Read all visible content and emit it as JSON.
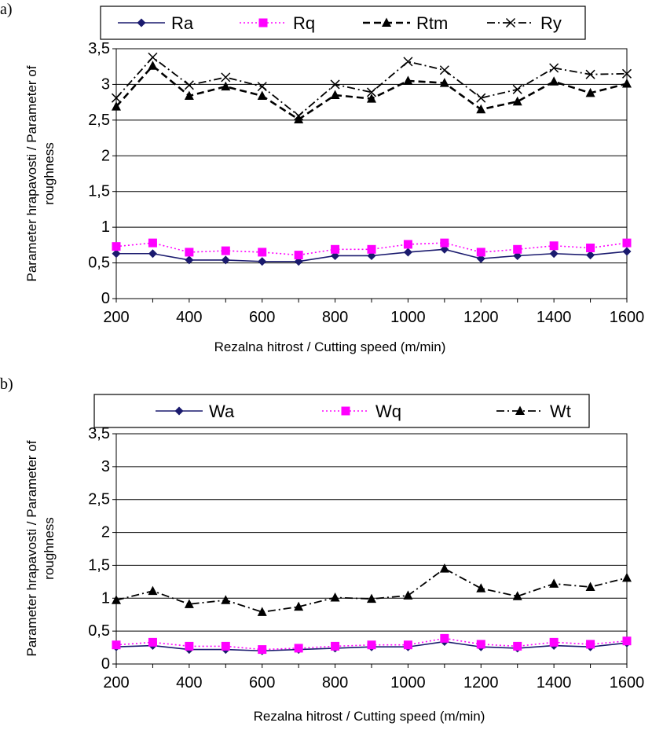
{
  "chart_data": [
    {
      "type": "line",
      "panel_label": "a)",
      "xlabel": "Rezalna hitrost / Cutting speed (m/min)",
      "ylabel_line1": "Parameter hrapavosti / Parameter of",
      "ylabel_line2": "roughness",
      "ylim": [
        0,
        3.5
      ],
      "yticks": [
        "0",
        "0,5",
        "1",
        "1,5",
        "2",
        "2,5",
        "3",
        "3,5"
      ],
      "x": [
        200,
        300,
        400,
        500,
        600,
        700,
        800,
        900,
        1000,
        1100,
        1200,
        1300,
        1400,
        1500,
        1600
      ],
      "xticks": [
        "200",
        "400",
        "600",
        "800",
        "1000",
        "1200",
        "1400",
        "1600"
      ],
      "grid": "horizontal",
      "legend_position": "top",
      "series": [
        {
          "name": "Ra",
          "color": "#1a1a6e",
          "marker": "diamond",
          "line": "solid",
          "values": [
            0.63,
            0.63,
            0.54,
            0.54,
            0.52,
            0.52,
            0.6,
            0.6,
            0.65,
            0.69,
            0.56,
            0.6,
            0.63,
            0.61,
            0.66
          ]
        },
        {
          "name": "Rq",
          "color": "#ff00ff",
          "marker": "square",
          "line": "dotted",
          "values": [
            0.73,
            0.78,
            0.65,
            0.67,
            0.65,
            0.61,
            0.69,
            0.69,
            0.76,
            0.78,
            0.65,
            0.69,
            0.74,
            0.71,
            0.78
          ]
        },
        {
          "name": "Rtm",
          "color": "#000000",
          "marker": "triangle",
          "line": "dashed",
          "values": [
            2.69,
            3.26,
            2.84,
            2.97,
            2.84,
            2.51,
            2.85,
            2.8,
            3.05,
            3.02,
            2.65,
            2.76,
            3.04,
            2.88,
            3.01
          ]
        },
        {
          "name": "Ry",
          "color": "#000000",
          "marker": "x",
          "line": "dashdot",
          "values": [
            2.81,
            3.38,
            2.99,
            3.1,
            2.97,
            2.56,
            3.0,
            2.89,
            3.32,
            3.2,
            2.81,
            2.93,
            3.23,
            3.14,
            3.15
          ]
        }
      ]
    },
    {
      "type": "line",
      "panel_label": "b)",
      "xlabel": "Rezalna hitrost / Cutting speed (m/min)",
      "ylabel_line1": "Parameter hrapavosti / Parameter of",
      "ylabel_line2": "roughness",
      "ylim": [
        0,
        3.5
      ],
      "yticks": [
        "0",
        "0,5",
        "1",
        "1,5",
        "2",
        "2,5",
        "3",
        "3,5"
      ],
      "x": [
        200,
        300,
        400,
        500,
        600,
        700,
        800,
        900,
        1000,
        1100,
        1200,
        1300,
        1400,
        1500,
        1600
      ],
      "xticks": [
        "200",
        "400",
        "600",
        "800",
        "1000",
        "1200",
        "1400",
        "1600"
      ],
      "grid": "horizontal",
      "legend_position": "top",
      "series": [
        {
          "name": "Wa",
          "color": "#1a1a6e",
          "marker": "diamond",
          "line": "solid",
          "values": [
            0.26,
            0.28,
            0.22,
            0.22,
            0.2,
            0.22,
            0.24,
            0.26,
            0.26,
            0.34,
            0.26,
            0.24,
            0.28,
            0.26,
            0.32
          ]
        },
        {
          "name": "Wq",
          "color": "#ff00ff",
          "marker": "square",
          "line": "dotted",
          "values": [
            0.29,
            0.33,
            0.27,
            0.27,
            0.22,
            0.24,
            0.27,
            0.29,
            0.29,
            0.39,
            0.3,
            0.27,
            0.33,
            0.3,
            0.35
          ]
        },
        {
          "name": "Wt",
          "color": "#000000",
          "marker": "triangle",
          "line": "dashdot",
          "values": [
            0.97,
            1.11,
            0.91,
            0.97,
            0.79,
            0.87,
            1.01,
            0.99,
            1.04,
            1.45,
            1.15,
            1.03,
            1.22,
            1.17,
            1.31
          ]
        }
      ]
    }
  ]
}
